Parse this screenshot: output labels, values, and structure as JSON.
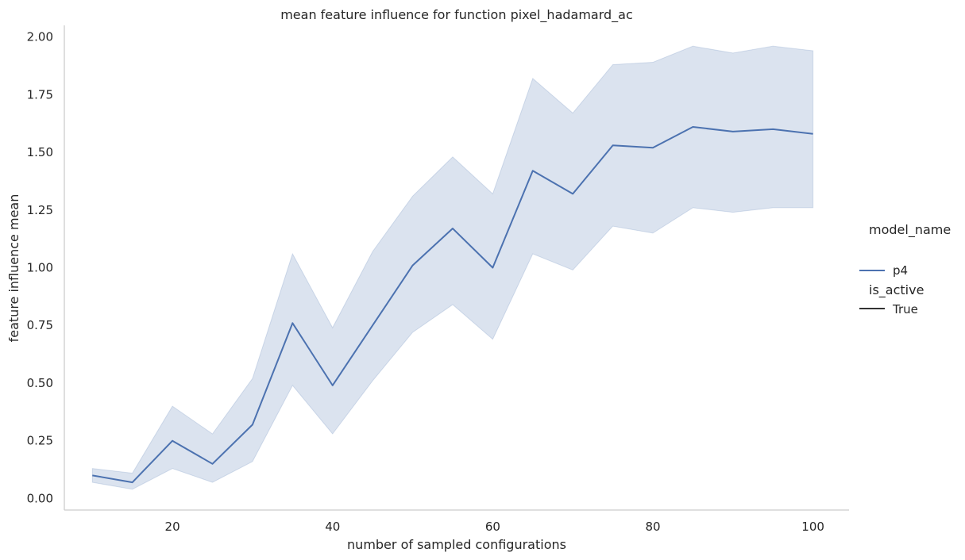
{
  "chart_data": {
    "type": "line",
    "title": "mean feature influence for function pixel_hadamard_ac",
    "xlabel": "number of sampled configurations",
    "ylabel": "feature influence mean",
    "xlim": [
      6.5,
      104.5
    ],
    "ylim": [
      -0.05,
      2.05
    ],
    "xticks": [
      20,
      40,
      60,
      80,
      100
    ],
    "xtick_labels": [
      "20",
      "40",
      "60",
      "80",
      "100"
    ],
    "yticks": [
      0.0,
      0.25,
      0.5,
      0.75,
      1.0,
      1.25,
      1.5,
      1.75,
      2.0
    ],
    "ytick_labels": [
      "0.00",
      "0.25",
      "0.50",
      "0.75",
      "1.00",
      "1.25",
      "1.50",
      "1.75",
      "2.00"
    ],
    "grid": false,
    "x": [
      10,
      15,
      20,
      25,
      30,
      35,
      40,
      45,
      50,
      55,
      60,
      65,
      70,
      75,
      80,
      85,
      90,
      95,
      100
    ],
    "series": [
      {
        "name": "p4",
        "color": "#4c72b0",
        "values": [
          0.1,
          0.07,
          0.25,
          0.15,
          0.32,
          0.76,
          0.49,
          0.75,
          1.01,
          1.17,
          1.0,
          1.42,
          1.32,
          1.53,
          1.52,
          1.61,
          1.59,
          1.6,
          1.58
        ],
        "ci_lower": [
          0.07,
          0.04,
          0.13,
          0.07,
          0.16,
          0.49,
          0.28,
          0.51,
          0.72,
          0.84,
          0.69,
          1.06,
          0.99,
          1.18,
          1.15,
          1.26,
          1.24,
          1.26,
          1.26
        ],
        "ci_upper": [
          0.13,
          0.11,
          0.4,
          0.28,
          0.52,
          1.06,
          0.74,
          1.07,
          1.31,
          1.48,
          1.32,
          1.82,
          1.67,
          1.88,
          1.89,
          1.96,
          1.93,
          1.96,
          1.94
        ]
      }
    ],
    "legend": {
      "placement": "right",
      "hue_title": "model_name",
      "hue_entries": [
        {
          "label": "p4",
          "color": "#4c72b0"
        }
      ],
      "style_title": "is_active",
      "style_entries": [
        {
          "label": "True",
          "color": "#333333"
        }
      ]
    }
  }
}
